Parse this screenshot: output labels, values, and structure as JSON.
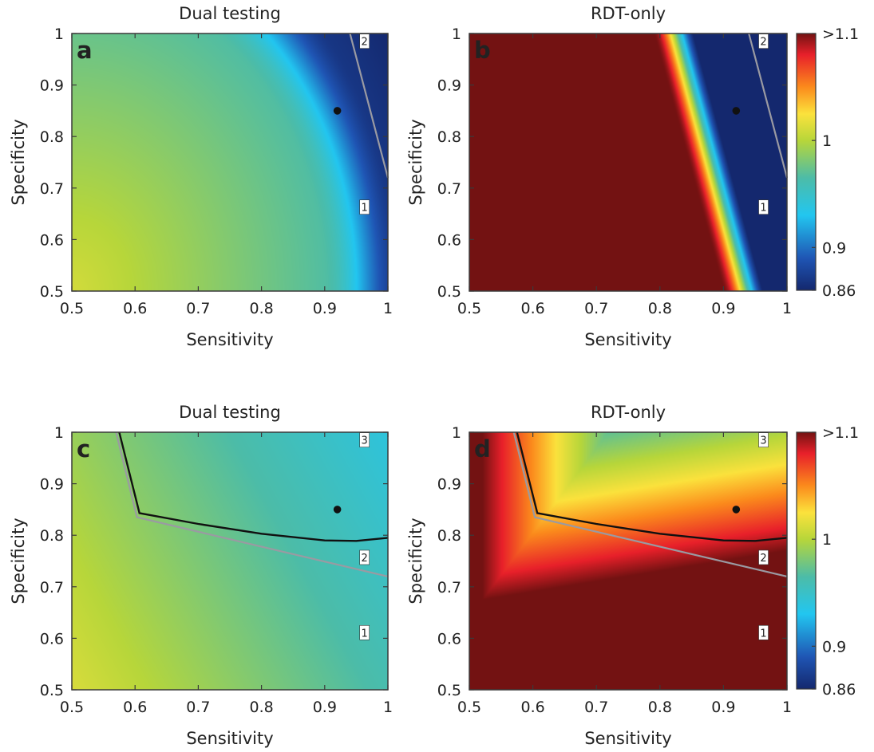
{
  "colorbar": {
    "labels": [
      {
        "value": 1.1,
        "text": ">1.1"
      },
      {
        "value": 1.0,
        "text": "1"
      },
      {
        "value": 0.9,
        "text": "0.9"
      },
      {
        "value": 0.86,
        "text": "0.86"
      }
    ],
    "range": [
      0.86,
      1.1
    ],
    "stops": [
      {
        "v": 0.86,
        "c": "#14286e"
      },
      {
        "v": 0.89,
        "c": "#1f55b4"
      },
      {
        "v": 0.93,
        "c": "#22c6f0"
      },
      {
        "v": 0.965,
        "c": "#4cbca8"
      },
      {
        "v": 1.0,
        "c": "#b7d63a"
      },
      {
        "v": 1.025,
        "c": "#fbe23c"
      },
      {
        "v": 1.05,
        "c": "#fb8a1c"
      },
      {
        "v": 1.08,
        "c": "#e8202a"
      },
      {
        "v": 1.1,
        "c": "#731212"
      }
    ]
  },
  "colors": {
    "black_line": "#111111",
    "gray_line": "#9a9aa2",
    "dot": "#111111"
  },
  "chart_data": [
    {
      "type": "heatmap",
      "panel_letter": "a",
      "title": "Dual testing",
      "xlabel": "Sensitivity",
      "ylabel": "Specificity",
      "xlim": [
        0.5,
        1
      ],
      "ylim": [
        0.5,
        1
      ],
      "xticks": [
        "0.5",
        "0.6",
        "0.7",
        "0.8",
        "0.9",
        "1"
      ],
      "yticks": [
        "0.5",
        "0.6",
        "0.7",
        "0.8",
        "0.9",
        "1"
      ],
      "point": {
        "x": 0.92,
        "y": 0.85
      },
      "gray_line": [
        [
          0.94,
          1.0
        ],
        [
          1.0,
          0.72
        ]
      ],
      "black_line": [],
      "region_labels": [
        {
          "text": "2",
          "x": 0.963,
          "y": 0.985
        },
        {
          "text": "1",
          "x": 0.963,
          "y": 0.663
        }
      ]
    },
    {
      "type": "heatmap",
      "panel_letter": "b",
      "title": "RDT-only",
      "xlabel": "Sensitivity",
      "ylabel": "Specificity",
      "xlim": [
        0.5,
        1
      ],
      "ylim": [
        0.5,
        1
      ],
      "xticks": [
        "0.5",
        "0.6",
        "0.7",
        "0.8",
        "0.9",
        "1"
      ],
      "yticks": [
        "0.5",
        "0.6",
        "0.7",
        "0.8",
        "0.9",
        "1"
      ],
      "point": {
        "x": 0.92,
        "y": 0.85
      },
      "gray_line": [
        [
          0.94,
          1.0
        ],
        [
          1.0,
          0.72
        ]
      ],
      "black_line": [],
      "region_labels": [
        {
          "text": "2",
          "x": 0.963,
          "y": 0.985
        },
        {
          "text": "1",
          "x": 0.963,
          "y": 0.663
        }
      ]
    },
    {
      "type": "heatmap",
      "panel_letter": "c",
      "title": "Dual testing",
      "xlabel": "Sensitivity",
      "ylabel": "Specificity",
      "xlim": [
        0.5,
        1
      ],
      "ylim": [
        0.5,
        1
      ],
      "xticks": [
        "0.5",
        "0.6",
        "0.7",
        "0.8",
        "0.9",
        "1"
      ],
      "yticks": [
        "0.5",
        "0.6",
        "0.7",
        "0.8",
        "0.9",
        "1"
      ],
      "point": {
        "x": 0.92,
        "y": 0.85
      },
      "gray_line": [
        [
          0.57,
          1.0
        ],
        [
          0.603,
          0.835
        ],
        [
          1.0,
          0.72
        ]
      ],
      "black_line": [
        [
          0.575,
          1.0
        ],
        [
          0.607,
          0.843
        ],
        [
          0.7,
          0.822
        ],
        [
          0.8,
          0.803
        ],
        [
          0.9,
          0.79
        ],
        [
          0.95,
          0.789
        ],
        [
          1.0,
          0.795
        ]
      ],
      "region_labels": [
        {
          "text": "3",
          "x": 0.963,
          "y": 0.985
        },
        {
          "text": "2",
          "x": 0.963,
          "y": 0.757
        },
        {
          "text": "1",
          "x": 0.963,
          "y": 0.611
        }
      ]
    },
    {
      "type": "heatmap",
      "panel_letter": "d",
      "title": "RDT-only",
      "xlabel": "Sensitivity",
      "ylabel": "Specificity",
      "xlim": [
        0.5,
        1
      ],
      "ylim": [
        0.5,
        1
      ],
      "xticks": [
        "0.5",
        "0.6",
        "0.7",
        "0.8",
        "0.9",
        "1"
      ],
      "yticks": [
        "0.5",
        "0.6",
        "0.7",
        "0.8",
        "0.9",
        "1"
      ],
      "point": {
        "x": 0.92,
        "y": 0.85
      },
      "gray_line": [
        [
          0.57,
          1.0
        ],
        [
          0.603,
          0.835
        ],
        [
          1.0,
          0.72
        ]
      ],
      "black_line": [
        [
          0.575,
          1.0
        ],
        [
          0.607,
          0.843
        ],
        [
          0.7,
          0.822
        ],
        [
          0.8,
          0.803
        ],
        [
          0.9,
          0.79
        ],
        [
          0.95,
          0.789
        ],
        [
          1.0,
          0.795
        ]
      ],
      "region_labels": [
        {
          "text": "3",
          "x": 0.963,
          "y": 0.985
        },
        {
          "text": "2",
          "x": 0.963,
          "y": 0.757
        },
        {
          "text": "1",
          "x": 0.963,
          "y": 0.611
        }
      ]
    }
  ]
}
